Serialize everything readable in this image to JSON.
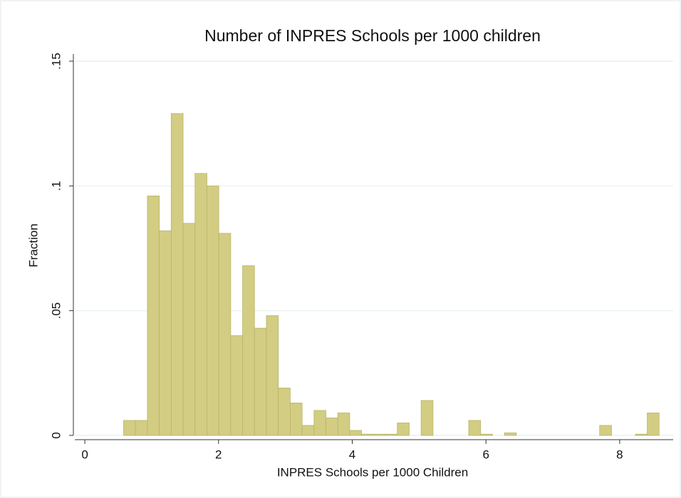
{
  "chart_data": {
    "type": "histogram",
    "title": "Number of INPRES Schools per 1000 children",
    "x_label": "INPRES Schools per 1000 Children",
    "y_label": "Fraction",
    "bins": [
      0.58,
      0.758,
      0.936,
      1.114,
      1.292,
      1.47,
      1.648,
      1.826,
      2.004,
      2.182,
      2.36,
      2.538,
      2.716,
      2.894,
      3.072,
      3.25,
      3.428,
      3.606,
      3.784,
      3.962,
      4.14,
      4.318,
      4.496,
      4.674,
      4.852,
      5.03,
      5.208,
      5.386,
      5.564,
      5.742,
      5.92,
      6.098,
      6.276,
      6.454,
      6.632,
      6.81,
      6.988,
      7.166,
      7.344,
      7.522,
      7.7,
      7.878,
      8.056,
      8.234,
      8.412,
      8.59
    ],
    "values": [
      0.006,
      0.006,
      0.096,
      0.082,
      0.129,
      0.085,
      0.105,
      0.1,
      0.081,
      0.04,
      0.068,
      0.043,
      0.048,
      0.019,
      0.013,
      0.004,
      0.01,
      0.007,
      0.009,
      0.002,
      0.0005,
      0.0005,
      0.0005,
      0.005,
      0,
      0.014,
      0,
      0,
      0,
      0.006,
      0.0005,
      0,
      0.001,
      0,
      0,
      0,
      0,
      0,
      0,
      0,
      0.004,
      0,
      0,
      0.0005,
      0.009
    ],
    "color": "#d2cd82",
    "xlim": [
      -0.15,
      8.8
    ],
    "xticks": [
      0,
      2,
      4,
      6,
      8
    ],
    "ylim": [
      0,
      0.15
    ],
    "yticks": [
      0,
      {
        "value": 0.05,
        "label": ".05"
      },
      {
        "value": 0.1,
        "label": ".1"
      },
      {
        "value": 0.15,
        "label": ".15"
      }
    ],
    "grid": true
  }
}
